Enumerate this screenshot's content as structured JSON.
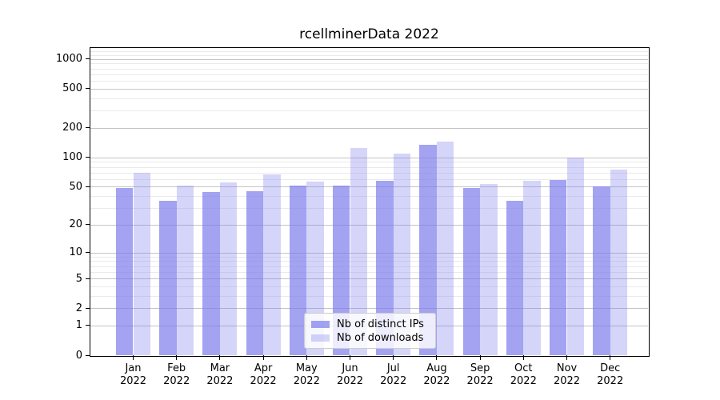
{
  "chart_data": {
    "type": "bar",
    "title": "rcellminerData 2022",
    "categories": [
      "Jan",
      "Feb",
      "Mar",
      "Apr",
      "May",
      "Jun",
      "Jul",
      "Aug",
      "Sep",
      "Oct",
      "Nov",
      "Dec"
    ],
    "category_year": "2022",
    "series": [
      {
        "name": "Nb of distinct IPs",
        "color": "rgba(124,124,237,0.70)",
        "values": [
          48,
          36,
          44,
          45,
          51,
          51,
          57,
          134,
          48,
          36,
          59,
          50
        ]
      },
      {
        "name": "Nb of downloads",
        "color": "rgba(124,124,237,0.32)",
        "values": [
          70,
          51,
          55,
          67,
          56,
          124,
          110,
          145,
          53,
          58,
          100,
          75
        ]
      }
    ],
    "yscale": "log1p",
    "ylim": [
      0,
      1292
    ],
    "y_ticks": [
      0,
      1,
      2,
      5,
      10,
      20,
      50,
      100,
      200,
      500,
      1000
    ],
    "y_minor_ticks": [
      3,
      4,
      6,
      7,
      8,
      9,
      30,
      40,
      60,
      70,
      80,
      90,
      300,
      400,
      600,
      700,
      800,
      900,
      1100,
      1200
    ],
    "grid": true,
    "legend_position": "lower center",
    "colors": {
      "axis": "#000000",
      "text": "#000000",
      "major_grid": "#c4c4c4",
      "minor_grid": "#eaeaea",
      "bar_dark": "rgba(124,124,237,0.70)",
      "bar_light": "rgba(124,124,237,0.32)"
    }
  }
}
